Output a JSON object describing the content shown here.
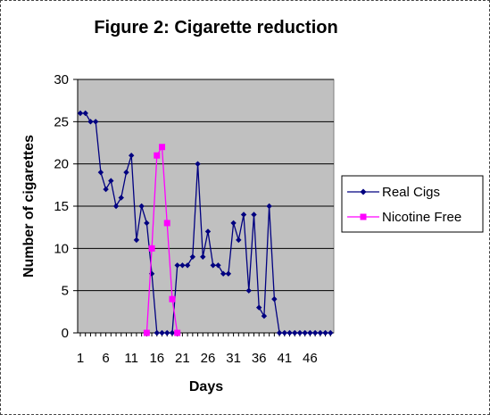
{
  "chart_data": {
    "type": "line",
    "title": "Figure 2: Cigarette reduction",
    "xlabel": "Days",
    "ylabel": "Number of cigarettes",
    "ylim": [
      0,
      30
    ],
    "yticks": [
      0,
      5,
      10,
      15,
      20,
      25,
      30
    ],
    "xlim": [
      1,
      50
    ],
    "xticks": [
      1,
      6,
      11,
      16,
      21,
      26,
      31,
      36,
      41,
      46
    ],
    "grid": true,
    "legend_position": "right",
    "plot_background": "#c0c0c0",
    "series": [
      {
        "name": "Real Cigs",
        "color": "#000080",
        "marker": "diamond",
        "x": [
          1,
          2,
          3,
          4,
          5,
          6,
          7,
          8,
          9,
          10,
          11,
          12,
          13,
          14,
          15,
          16,
          17,
          18,
          19,
          20,
          21,
          22,
          23,
          24,
          25,
          26,
          27,
          28,
          29,
          30,
          31,
          32,
          33,
          34,
          35,
          36,
          37,
          38,
          39,
          40,
          41,
          42,
          43,
          44,
          45,
          46,
          47,
          48,
          49,
          50
        ],
        "values": [
          26,
          26,
          25,
          25,
          19,
          17,
          18,
          15,
          16,
          19,
          21,
          11,
          15,
          13,
          7,
          0,
          0,
          0,
          0,
          8,
          8,
          8,
          9,
          20,
          9,
          12,
          8,
          8,
          7,
          7,
          13,
          11,
          14,
          5,
          14,
          3,
          2,
          15,
          4,
          0,
          0,
          0,
          0,
          0,
          0,
          0,
          0,
          0,
          0,
          0
        ]
      },
      {
        "name": "Nicotine Free",
        "color": "#ff00ff",
        "marker": "square",
        "x": [
          14,
          15,
          16,
          17,
          18,
          19,
          20
        ],
        "values": [
          0,
          10,
          21,
          22,
          13,
          4,
          0
        ]
      }
    ]
  }
}
